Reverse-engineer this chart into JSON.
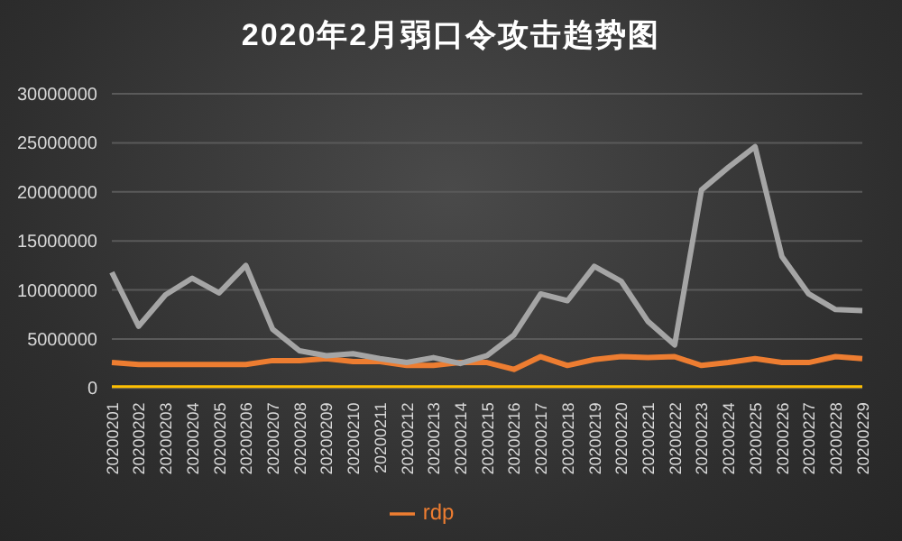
{
  "chart_data": {
    "type": "line",
    "title": "2020年2月弱口令攻击趋势图",
    "categories": [
      "20200201",
      "20200202",
      "20200203",
      "20200204",
      "20200205",
      "20200206",
      "20200207",
      "20200208",
      "20200209",
      "20200210",
      "20200211",
      "20200212",
      "20200213",
      "20200214",
      "20200215",
      "20200216",
      "20200217",
      "20200218",
      "20200219",
      "20200220",
      "20200221",
      "20200222",
      "20200223",
      "20200224",
      "20200225",
      "20200226",
      "20200227",
      "20200228",
      "20200229"
    ],
    "series": [
      {
        "name": "rdp",
        "color": "#ed7d31",
        "values": [
          2600000,
          2400000,
          2400000,
          2400000,
          2400000,
          2400000,
          2800000,
          2800000,
          3000000,
          2700000,
          2700000,
          2300000,
          2300000,
          2600000,
          2600000,
          1900000,
          3200000,
          2300000,
          2900000,
          3200000,
          3100000,
          3200000,
          2300000,
          2600000,
          3000000,
          2600000,
          2600000,
          3200000,
          3000000
        ]
      },
      {
        "color": "#a5a5a5",
        "values": [
          11800000,
          6300000,
          9500000,
          11200000,
          9700000,
          12500000,
          6000000,
          3800000,
          3300000,
          3500000,
          3000000,
          2600000,
          3100000,
          2500000,
          3300000,
          5400000,
          9600000,
          8900000,
          12400000,
          10900000,
          6800000,
          4400000,
          20200000,
          22500000,
          24600000,
          13400000,
          9600000,
          8000000,
          7900000
        ]
      },
      {
        "color": "#ffc000",
        "values": [
          0,
          0,
          0,
          0,
          0,
          0,
          0,
          0,
          0,
          0,
          0,
          0,
          0,
          0,
          0,
          0,
          0,
          0,
          0,
          0,
          0,
          0,
          0,
          0,
          0,
          0,
          0,
          0,
          0
        ]
      }
    ],
    "ylim": [
      0,
      30000000
    ],
    "yticks": [
      0,
      5000000,
      10000000,
      15000000,
      20000000,
      25000000,
      30000000
    ],
    "grid": "y",
    "legend": "bottom",
    "marker": "none",
    "line_style": "solid"
  }
}
